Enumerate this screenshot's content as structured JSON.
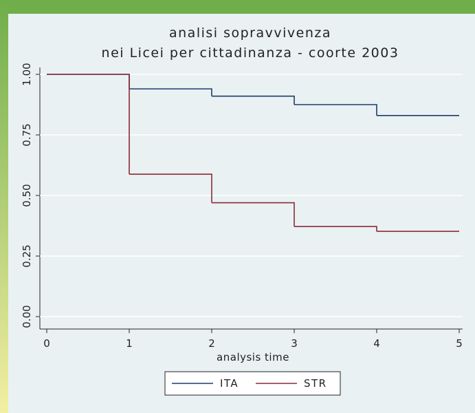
{
  "chart_data": {
    "type": "step",
    "title": [
      "analisi sopravvivenza",
      "nei Licei per cittadinanza - coorte 2003"
    ],
    "x_label": "analysis time",
    "x": [
      0,
      1,
      2,
      3,
      4
    ],
    "series": [
      {
        "name": "ITA",
        "color": "#1f3b6e",
        "values": [
          1.0,
          0.94,
          0.91,
          0.875,
          0.83
        ]
      },
      {
        "name": "STR",
        "color": "#8a2a36",
        "values": [
          1.0,
          0.588,
          0.47,
          0.372,
          0.352
        ]
      }
    ],
    "xlim": [
      0,
      5
    ],
    "xticks": [
      0,
      1,
      2,
      3,
      4,
      5
    ],
    "ylim": [
      0,
      1
    ],
    "yticks": [
      {
        "value": 0,
        "label": "0.00"
      },
      {
        "value": 0.25,
        "label": "0.25"
      },
      {
        "value": 0.5,
        "label": "0.50"
      },
      {
        "value": 0.75,
        "label": "0.75"
      },
      {
        "value": 1,
        "label": "1.00"
      }
    ],
    "grid": true,
    "legend": "bottom"
  }
}
